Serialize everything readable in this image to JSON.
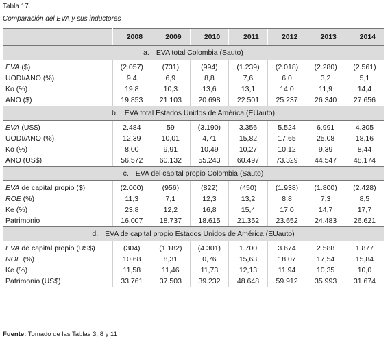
{
  "title": "Tabla 17.",
  "subtitle": "Comparación del EVA y sus inductores",
  "source": {
    "bold": "Fuente:",
    "text": " Tomado de las Tablas 3, 8 y 11"
  },
  "years": [
    "2008",
    "2009",
    "2010",
    "2011",
    "2012",
    "2013",
    "2014"
  ],
  "sections": [
    {
      "letter": "a.",
      "heading": "EVA total Colombia (Sauto)",
      "rows": [
        {
          "italic": "EVA",
          "rest": " ($)",
          "values": [
            "(2.057)",
            "(731)",
            "(994)",
            "(1.239)",
            "(2.018)",
            "(2.280)",
            "(2.561)"
          ]
        },
        {
          "italic": "",
          "rest": "UODI/ANO (%)",
          "values": [
            "9,4",
            "6,9",
            "8,8",
            "7,6",
            "6,0",
            "3,2",
            "5,1"
          ]
        },
        {
          "italic": "",
          "rest": "Ko (%)",
          "values": [
            "19,8",
            "10,3",
            "13,6",
            "13,1",
            "14,0",
            "11,9",
            "14,4"
          ]
        },
        {
          "italic": "",
          "rest": "ANO ($)",
          "values": [
            "19.853",
            "21.103",
            "20.698",
            "22.501",
            "25.237",
            "26.340",
            "27.656"
          ]
        }
      ]
    },
    {
      "letter": "b.",
      "heading": "EVA total Estados Unidos de América (EUauto)",
      "rows": [
        {
          "italic": "EVA",
          "rest": " (US$)",
          "values": [
            "2.484",
            "59",
            "(3.190)",
            "3.356",
            "5.524",
            "6.991",
            "4.305"
          ]
        },
        {
          "italic": "",
          "rest": "UODI/ANO (%)",
          "values": [
            "12,39",
            "10,01",
            "4,71",
            "15,82",
            "17,65",
            "25,08",
            "18,16"
          ]
        },
        {
          "italic": "",
          "rest": "Ko (%)",
          "values": [
            "8,00",
            "9,91",
            "10,49",
            "10,27",
            "10,12",
            "9,39",
            "8,44"
          ]
        },
        {
          "italic": "",
          "rest": "ANO (US$)",
          "values": [
            "56.572",
            "60.132",
            "55.243",
            "60.497",
            "73.329",
            "44.547",
            "48.174"
          ]
        }
      ]
    },
    {
      "letter": "c.",
      "heading": "EVA del capital propio Colombia (Sauto)",
      "rows": [
        {
          "italic": "EVA",
          "rest": " de capital propio ($)",
          "values": [
            "(2.000)",
            "(956)",
            "(822)",
            "(450)",
            "(1.938)",
            "(1.800)",
            "(2.428)"
          ]
        },
        {
          "italic": "ROE",
          "rest": " (%)",
          "values": [
            "11,3",
            "7,1",
            "12,3",
            "13,2",
            "8,8",
            "7,3",
            "8,5"
          ]
        },
        {
          "italic": "",
          "rest": "Ke (%)",
          "values": [
            "23,8",
            "12,2",
            "16,8",
            "15,4",
            "17,0",
            "14,7",
            "17,7"
          ]
        },
        {
          "italic": "",
          "rest": "Patrimonio",
          "values": [
            "16.007",
            "18.737",
            "18.615",
            "21.352",
            "23.652",
            "24.483",
            "26.621"
          ]
        }
      ]
    },
    {
      "letter": "d.",
      "heading": "EVA de capital propio Estados Unidos de América (EUauto)",
      "rows": [
        {
          "italic": "EVA",
          "rest": " de capital propio (US$)",
          "values": [
            "(304)",
            "(1.182)",
            "(4.301)",
            "1.700",
            "3.674",
            "2.588",
            "1.877"
          ]
        },
        {
          "italic": "ROE",
          "rest": " (%)",
          "values": [
            "10,68",
            "8,31",
            "0,76",
            "15,63",
            "18,07",
            "17,54",
            "15,84"
          ]
        },
        {
          "italic": "",
          "rest": "Ke (%)",
          "values": [
            "11,58",
            "11,46",
            "11,73",
            "12,13",
            "11,94",
            "10,35",
            "10,0"
          ]
        },
        {
          "italic": "",
          "rest": "Patrimonio (US$)",
          "values": [
            "33.761",
            "37.503",
            "39.232",
            "48.648",
            "59.912",
            "35.993",
            "31.674"
          ]
        }
      ]
    }
  ]
}
